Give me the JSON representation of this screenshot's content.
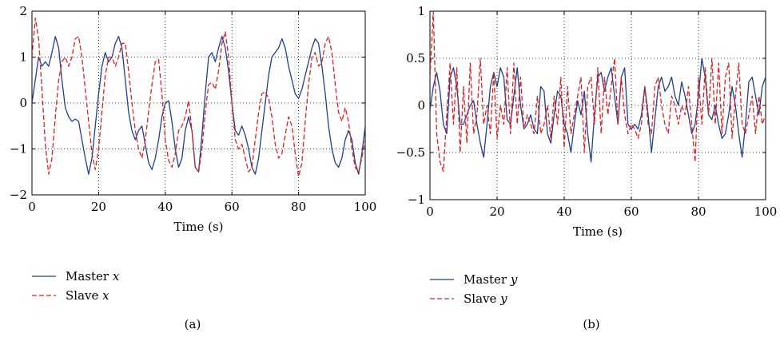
{
  "chart_data": [
    {
      "type": "line",
      "caption": "(a)",
      "xlabel": "Time (s)",
      "ylabel": "",
      "xlim": [
        0,
        100
      ],
      "ylim": [
        -2,
        2
      ],
      "xticks": [
        0,
        20,
        40,
        60,
        80,
        100
      ],
      "yticks": [
        -2,
        -1,
        0,
        1,
        2
      ],
      "grid": true,
      "legend_position": "below",
      "series": [
        {
          "name": "Master x",
          "legend_label": "Master",
          "legend_var": "x",
          "color": "#1f3f8f",
          "dash": "solid",
          "x": [
            0,
            2,
            3,
            4,
            5,
            6,
            7,
            8,
            9,
            10,
            11,
            12,
            13,
            14,
            15,
            16,
            17,
            18,
            19,
            20,
            21,
            22,
            23,
            24,
            25,
            26,
            27,
            28,
            29,
            30,
            31,
            32,
            33,
            34,
            35,
            36,
            37,
            38,
            39,
            40,
            41,
            42,
            43,
            44,
            45,
            46,
            47,
            48,
            49,
            50,
            51,
            52,
            53,
            54,
            55,
            56,
            57,
            58,
            59,
            60,
            61,
            62,
            63,
            64,
            65,
            66,
            67,
            68,
            69,
            70,
            71,
            72,
            73,
            74,
            75,
            76,
            77,
            78,
            79,
            80,
            81,
            82,
            83,
            84,
            85,
            86,
            87,
            88,
            89,
            90,
            91,
            92,
            93,
            94,
            95,
            96,
            97,
            98,
            99,
            100
          ],
          "y": [
            0,
            1.0,
            0.8,
            0.9,
            0.8,
            1.1,
            1.45,
            1.2,
            0.5,
            -0.1,
            -0.3,
            -0.4,
            -0.35,
            -0.4,
            -0.8,
            -1.2,
            -1.55,
            -1.2,
            -0.5,
            0.2,
            0.8,
            1.1,
            0.9,
            1.0,
            1.3,
            1.45,
            1.2,
            0.5,
            -0.2,
            -0.6,
            -0.8,
            -0.6,
            -0.5,
            -0.9,
            -1.3,
            -1.45,
            -1.2,
            -0.8,
            -0.3,
            0.0,
            0.05,
            -0.4,
            -1.0,
            -1.4,
            -1.2,
            -0.6,
            -0.3,
            -0.6,
            -1.4,
            -1.5,
            -0.7,
            0.2,
            1.0,
            1.1,
            0.9,
            1.2,
            1.45,
            1.2,
            0.7,
            0.0,
            -0.6,
            -0.7,
            -0.5,
            -0.7,
            -1.0,
            -1.4,
            -1.55,
            -1.2,
            -0.6,
            0.0,
            0.6,
            1.0,
            1.1,
            1.2,
            1.4,
            1.2,
            0.8,
            0.5,
            0.2,
            0.1,
            0.3,
            0.6,
            0.9,
            1.2,
            1.4,
            1.3,
            0.8,
            0.2,
            -0.5,
            -1.0,
            -1.3,
            -1.4,
            -1.2,
            -0.8,
            -0.6,
            -0.8,
            -1.3,
            -1.55,
            -1.1,
            -0.5
          ]
        },
        {
          "name": "Slave x",
          "legend_label": "Slave",
          "legend_var": "x",
          "color": "#e02020",
          "dash": "dashed",
          "x": [
            0,
            1,
            2,
            3,
            4,
            5,
            6,
            7,
            8,
            9,
            10,
            11,
            12,
            13,
            14,
            15,
            16,
            17,
            18,
            19,
            20,
            21,
            22,
            23,
            24,
            25,
            26,
            27,
            28,
            29,
            30,
            31,
            32,
            33,
            34,
            35,
            36,
            37,
            38,
            39,
            40,
            41,
            42,
            43,
            44,
            45,
            46,
            47,
            48,
            49,
            50,
            51,
            52,
            53,
            54,
            55,
            56,
            57,
            58,
            59,
            60,
            61,
            62,
            63,
            64,
            65,
            66,
            67,
            68,
            69,
            70,
            71,
            72,
            73,
            74,
            75,
            76,
            77,
            78,
            79,
            80,
            81,
            82,
            83,
            84,
            85,
            86,
            87,
            88,
            89,
            90,
            91,
            92,
            93,
            94,
            95,
            96,
            97,
            98,
            99,
            100
          ],
          "y": [
            1.0,
            1.85,
            1.4,
            0.3,
            -0.9,
            -1.55,
            -1.2,
            -0.3,
            0.5,
            0.9,
            1.0,
            0.8,
            1.0,
            1.4,
            1.45,
            1.0,
            0.3,
            -0.4,
            -1.1,
            -1.45,
            -1.0,
            -0.2,
            0.6,
            1.0,
            1.0,
            0.8,
            1.0,
            1.3,
            1.3,
            0.7,
            0.0,
            -0.6,
            -1.0,
            -1.2,
            -0.8,
            -0.2,
            0.4,
            0.9,
            0.95,
            0.2,
            -0.8,
            -1.25,
            -1.4,
            -1.1,
            -0.6,
            -0.5,
            -0.3,
            0.05,
            -0.6,
            -1.4,
            -1.5,
            -1.0,
            -0.2,
            0.4,
            0.45,
            0.3,
            0.7,
            1.3,
            1.55,
            1.0,
            0.0,
            -0.8,
            -1.0,
            -0.9,
            -1.2,
            -1.5,
            -1.4,
            -0.8,
            -0.2,
            0.2,
            0.25,
            0.1,
            -0.3,
            -0.9,
            -1.2,
            -1.1,
            -0.7,
            -0.3,
            -0.5,
            -1.1,
            -1.6,
            -1.3,
            -0.4,
            0.4,
            1.0,
            1.1,
            0.8,
            0.9,
            1.3,
            1.45,
            1.1,
            0.4,
            -0.2,
            -0.4,
            -0.1,
            -0.4,
            -1.0,
            -1.4,
            -1.5,
            -1.2,
            -0.8
          ]
        }
      ]
    },
    {
      "type": "line",
      "caption": "(b)",
      "xlabel": "Time (s)",
      "ylabel": "",
      "xlim": [
        0,
        100
      ],
      "ylim": [
        -1,
        1
      ],
      "xticks": [
        0,
        20,
        40,
        60,
        80,
        100
      ],
      "yticks": [
        -1,
        -0.5,
        0,
        0.5,
        1
      ],
      "grid": true,
      "legend_position": "below",
      "series": [
        {
          "name": "Master y",
          "legend_label": "Master",
          "legend_var": "y",
          "color": "#1f3f8f",
          "dash": "solid",
          "x": [
            0,
            1,
            2,
            3,
            4,
            5,
            6,
            7,
            8,
            9,
            10,
            11,
            12,
            13,
            14,
            15,
            16,
            17,
            18,
            19,
            20,
            21,
            22,
            23,
            24,
            25,
            26,
            27,
            28,
            29,
            30,
            31,
            32,
            33,
            34,
            35,
            36,
            37,
            38,
            39,
            40,
            41,
            42,
            43,
            44,
            45,
            46,
            47,
            48,
            49,
            50,
            51,
            52,
            53,
            54,
            55,
            56,
            57,
            58,
            59,
            60,
            61,
            62,
            63,
            64,
            65,
            66,
            67,
            68,
            69,
            70,
            71,
            72,
            73,
            74,
            75,
            76,
            77,
            78,
            79,
            80,
            81,
            82,
            83,
            84,
            85,
            86,
            87,
            88,
            89,
            90,
            91,
            92,
            93,
            94,
            95,
            96,
            97,
            98,
            99,
            100
          ],
          "y": [
            -0.05,
            0.2,
            0.35,
            0.15,
            -0.2,
            -0.3,
            0.3,
            0.4,
            0.2,
            -0.2,
            -0.2,
            -0.1,
            0.0,
            0.05,
            -0.2,
            -0.4,
            -0.55,
            -0.2,
            0.2,
            0.35,
            0.2,
            0.4,
            0.3,
            -0.15,
            -0.2,
            0.1,
            0.4,
            0.0,
            -0.25,
            -0.2,
            -0.1,
            -0.25,
            -0.3,
            0.2,
            0.15,
            -0.3,
            -0.4,
            -0.1,
            0.15,
            0.1,
            -0.2,
            -0.3,
            -0.5,
            -0.2,
            0.05,
            -0.1,
            0.15,
            -0.3,
            -0.6,
            -0.1,
            0.3,
            0.35,
            0.15,
            0.3,
            0.4,
            0.1,
            -0.2,
            0.3,
            0.4,
            -0.2,
            -0.25,
            -0.2,
            -0.25,
            -0.1,
            0.2,
            -0.1,
            -0.5,
            -0.15,
            0.2,
            0.3,
            0.15,
            0.2,
            0.3,
            0.1,
            0.0,
            0.25,
            0.1,
            -0.1,
            -0.3,
            -0.2,
            0.1,
            0.5,
            0.3,
            -0.1,
            -0.15,
            0.0,
            -0.2,
            -0.35,
            -0.3,
            -0.1,
            0.2,
            0.0,
            -0.3,
            -0.55,
            -0.2,
            0.25,
            0.3,
            0.1,
            -0.1,
            0.2,
            0.3
          ]
        },
        {
          "name": "Slave y",
          "legend_label": "Slave",
          "legend_var": "y",
          "color": "#e02020",
          "dash": "dashed",
          "x": [
            0,
            1,
            2,
            3,
            4,
            5,
            6,
            7,
            8,
            9,
            10,
            11,
            12,
            13,
            14,
            15,
            16,
            17,
            18,
            19,
            20,
            21,
            22,
            23,
            24,
            25,
            26,
            27,
            28,
            29,
            30,
            31,
            32,
            33,
            34,
            35,
            36,
            37,
            38,
            39,
            40,
            41,
            42,
            43,
            44,
            45,
            46,
            47,
            48,
            49,
            50,
            51,
            52,
            53,
            54,
            55,
            56,
            57,
            58,
            59,
            60,
            61,
            62,
            63,
            64,
            65,
            66,
            67,
            68,
            69,
            70,
            71,
            72,
            73,
            74,
            75,
            76,
            77,
            78,
            79,
            80,
            81,
            82,
            83,
            84,
            85,
            86,
            87,
            88,
            89,
            90,
            91,
            92,
            93,
            94,
            95,
            96,
            97,
            98,
            99,
            100
          ],
          "y": [
            0.3,
            1.0,
            -0.3,
            -0.6,
            -0.7,
            -0.1,
            0.45,
            -0.2,
            0.4,
            -0.5,
            0.2,
            -0.4,
            0.45,
            -0.3,
            -0.1,
            0.5,
            -0.2,
            0.0,
            -0.3,
            0.35,
            -0.35,
            0.0,
            -0.2,
            0.4,
            -0.3,
            0.45,
            -0.2,
            0.3,
            -0.25,
            -0.1,
            -0.2,
            -0.3,
            0.1,
            -0.3,
            -0.2,
            0.0,
            -0.35,
            0.1,
            -0.2,
            0.3,
            -0.45,
            0.2,
            -0.3,
            -0.1,
            0.1,
            0.3,
            -0.5,
            0.2,
            0.3,
            -0.2,
            0.4,
            -0.3,
            0.3,
            -0.1,
            0.2,
            0.5,
            -0.2,
            0.3,
            -0.1,
            -0.3,
            -0.2,
            -0.25,
            -0.35,
            -0.2,
            0.2,
            -0.2,
            -0.3,
            0.2,
            0.3,
            0.0,
            -0.2,
            -0.3,
            0.1,
            0.0,
            -0.2,
            0.0,
            -0.1,
            0.2,
            -0.2,
            -0.6,
            0.3,
            -0.2,
            0.4,
            -0.1,
            0.5,
            -0.2,
            0.45,
            -0.3,
            0.3,
            0.45,
            -0.35,
            0.1,
            0.45,
            -0.2,
            -0.3,
            -0.1,
            0.1,
            -0.3,
            0.1,
            -0.2,
            -0.1
          ]
        }
      ]
    }
  ]
}
